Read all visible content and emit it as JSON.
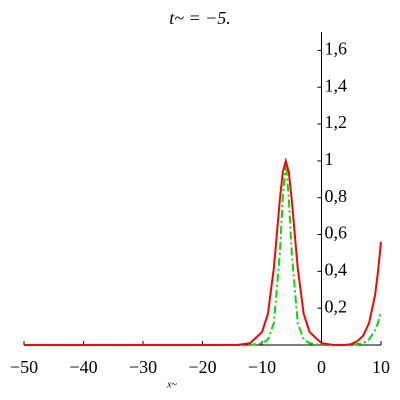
{
  "chart_data": {
    "type": "line",
    "title": "t~ = −5.",
    "x_label": "x~",
    "x": [
      -50,
      -20,
      -14,
      -12,
      -10,
      -9,
      -8,
      -7,
      -6.5,
      -6,
      -5.5,
      -5,
      -4,
      -3,
      -2,
      0,
      2,
      4,
      5,
      6,
      7,
      8,
      9,
      9.5,
      10
    ],
    "series": [
      {
        "color": "#ff0000",
        "style": "solid",
        "values": [
          0,
          0,
          0.001,
          0.01,
          0.07,
          0.17,
          0.42,
          0.79,
          0.94,
          1,
          0.94,
          0.79,
          0.42,
          0.17,
          0.07,
          0.01,
          0,
          0,
          0.005,
          0.02,
          0.05,
          0.12,
          0.27,
          0.4,
          0.56
        ]
      },
      {
        "color": "#00e000",
        "style": "dashdot",
        "values": [
          0,
          0,
          0,
          0,
          0.01,
          0.03,
          0.12,
          0.5,
          0.8,
          1,
          0.8,
          0.5,
          0.12,
          0.03,
          0.01,
          0,
          0,
          0,
          0,
          0.005,
          0.01,
          0.03,
          0.08,
          0.12,
          0.18
        ]
      }
    ],
    "xlim": [
      -50,
      10
    ],
    "ylim": [
      0,
      1.7
    ],
    "xticks": [
      {
        "value": -50,
        "label": "−50"
      },
      {
        "value": -40,
        "label": "−40"
      },
      {
        "value": -30,
        "label": "−30"
      },
      {
        "value": -20,
        "label": "−20"
      },
      {
        "value": -10,
        "label": "−10"
      },
      0,
      10
    ],
    "yticks": [
      {
        "value": 0.2,
        "label": "0,2"
      },
      {
        "value": 0.4,
        "label": "0,4"
      },
      {
        "value": 0.6,
        "label": "0,6"
      },
      {
        "value": 0.8,
        "label": "0,8"
      },
      1,
      {
        "value": 1.2,
        "label": "1,2"
      },
      {
        "value": 1.4,
        "label": "1,4"
      },
      {
        "value": 1.6,
        "label": "1,6"
      }
    ]
  }
}
